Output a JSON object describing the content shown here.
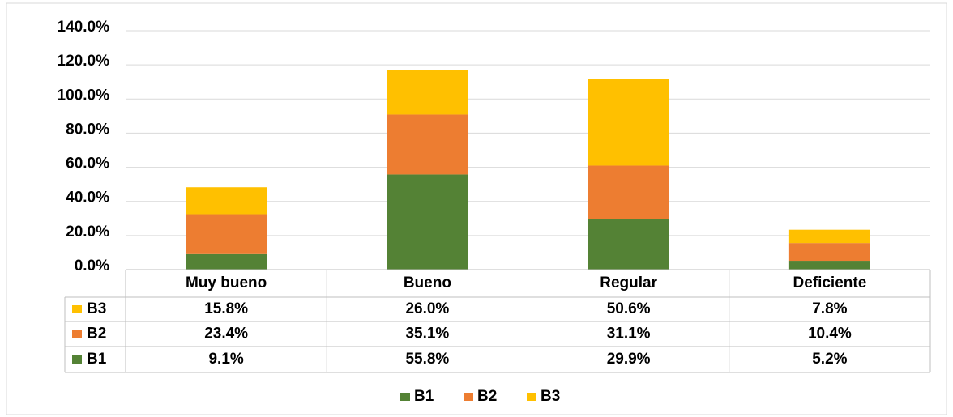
{
  "chart_data": {
    "type": "bar",
    "stacked": true,
    "categories": [
      "Muy bueno",
      "Bueno",
      "Regular",
      "Deficiente"
    ],
    "series": [
      {
        "name": "B1",
        "color": "#548235",
        "values": [
          9.1,
          55.8,
          29.9,
          5.2
        ],
        "value_labels": [
          "9.1%",
          "55.8%",
          "29.9%",
          "5.2%"
        ]
      },
      {
        "name": "B2",
        "color": "#ED7D31",
        "values": [
          23.4,
          35.1,
          31.1,
          10.4
        ],
        "value_labels": [
          "23.4%",
          "35.1%",
          "31.1%",
          "10.4%"
        ]
      },
      {
        "name": "B3",
        "color": "#FFC000",
        "values": [
          15.8,
          26.0,
          50.6,
          7.8
        ],
        "value_labels": [
          "15.8%",
          "26.0%",
          "50.6%",
          "7.8%"
        ]
      }
    ],
    "ylim": [
      0,
      140
    ],
    "yticks": [
      {
        "value": 0,
        "label": "0.0%"
      },
      {
        "value": 20,
        "label": "20.0%"
      },
      {
        "value": 40,
        "label": "40.0%"
      },
      {
        "value": 60,
        "label": "60.0%"
      },
      {
        "value": 80,
        "label": "80.0%"
      },
      {
        "value": 100,
        "label": "100.0%"
      },
      {
        "value": 120,
        "label": "120.0%"
      },
      {
        "value": 140,
        "label": "140.0%"
      }
    ],
    "grid": true,
    "legend": "bottom",
    "data_table": true
  }
}
